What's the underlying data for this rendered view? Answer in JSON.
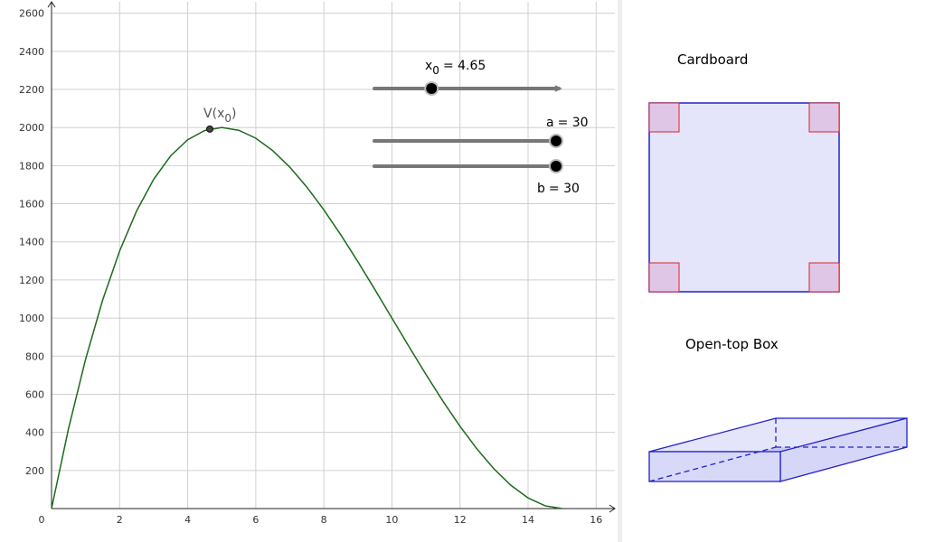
{
  "chart_data": {
    "type": "line",
    "x": [
      0,
      0.5,
      1,
      1.5,
      2,
      2.5,
      3,
      3.5,
      4,
      4.5,
      5,
      5.5,
      6,
      6.5,
      7,
      7.5,
      8,
      8.5,
      9,
      9.5,
      10,
      10.5,
      11,
      11.5,
      12,
      12.5,
      13,
      13.5,
      14,
      14.5,
      15
    ],
    "series": [
      {
        "color": "#1a6b1a",
        "values": [
          0,
          420.5,
          784,
          1093.5,
          1352,
          1562.5,
          1728,
          1851.5,
          1936,
          1984.5,
          2000,
          1985.5,
          1944,
          1878.5,
          1792,
          1687.5,
          1568,
          1436.5,
          1296,
          1149.5,
          1000,
          850.5,
          704,
          563.5,
          432,
          312.5,
          208,
          121.5,
          56,
          14.5,
          0
        ]
      }
    ],
    "point": {
      "x": 4.65,
      "y": 1992,
      "label": "V(x",
      "subscript": "0",
      "label_end": ")"
    },
    "xlim": [
      0,
      16.55
    ],
    "ylim": [
      0,
      2660
    ],
    "xticks": [
      0,
      2,
      4,
      6,
      8,
      10,
      12,
      14,
      16
    ],
    "yticks": [
      200,
      400,
      600,
      800,
      1000,
      1200,
      1400,
      1600,
      1800,
      2000,
      2200,
      2400,
      2600
    ],
    "grid": true
  },
  "sliders": [
    {
      "label": "x",
      "subscript": "0",
      "value_label": "= 4.65",
      "value": 4.65,
      "min": 0,
      "max": 15
    },
    {
      "label": "a",
      "value_label": "= 30",
      "value": 30,
      "min": 0,
      "max": 30
    },
    {
      "label": "b",
      "value_label": "= 30",
      "value": 30,
      "min": 0,
      "max": 30
    }
  ],
  "panels": {
    "cardboard": "Cardboard",
    "box": "Open-top Box"
  }
}
